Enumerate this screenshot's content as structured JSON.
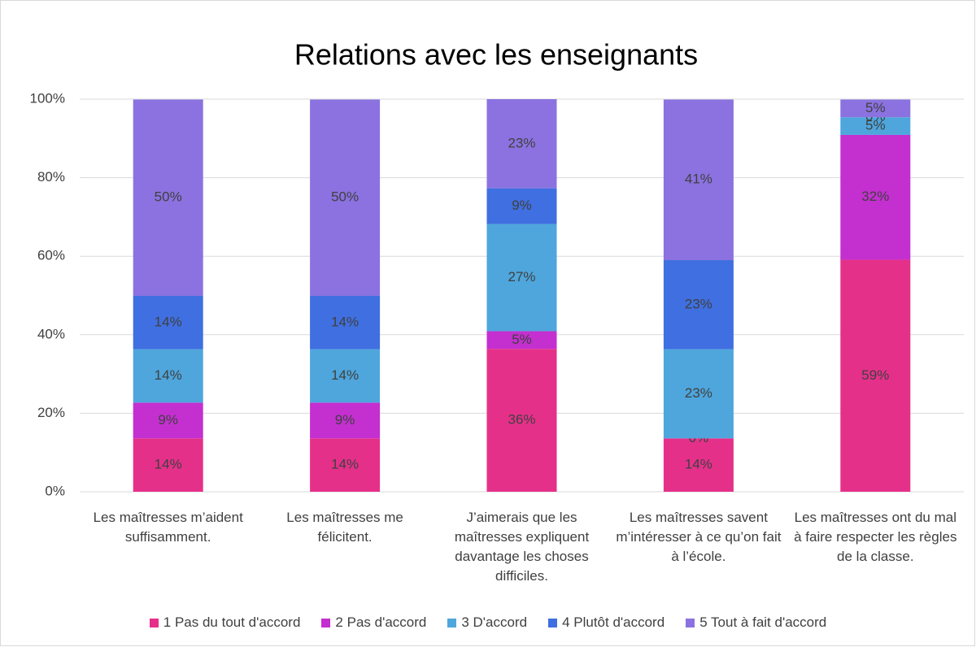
{
  "chart_data": {
    "type": "stacked_bar_percent",
    "title": "Relations avec les enseignants",
    "categories": [
      "Les maîtresses m’aident suffisamment.",
      "Les maîtresses me félicitent.",
      "J’aimerais que les maîtresses expliquent davantage les choses difficiles.",
      "Les maîtresses savent m’intéresser à ce qu’on fait à l’école.",
      "Les maîtresses ont du mal à faire respecter les règles de la classe."
    ],
    "series": [
      {
        "name": "1 Pas du tout d'accord",
        "color": "#e5308a",
        "values": [
          13.6,
          13.6,
          36.4,
          13.6,
          59.1
        ],
        "value_labels": [
          "14%",
          "14%",
          "36%",
          "14%",
          "59%"
        ]
      },
      {
        "name": "2 Pas d'accord",
        "color": "#c42fd0",
        "values": [
          9.1,
          9.1,
          4.5,
          0,
          31.8
        ],
        "value_labels": [
          "9%",
          "9%",
          "5%",
          "0%",
          "32%"
        ]
      },
      {
        "name": "3 D'accord",
        "color": "#4ea6dc",
        "values": [
          13.6,
          13.6,
          27.3,
          22.7,
          4.5
        ],
        "value_labels": [
          "14%",
          "14%",
          "27%",
          "23%",
          "5%"
        ]
      },
      {
        "name": "4 Plutôt d'accord",
        "color": "#3f6fe0",
        "values": [
          13.6,
          13.6,
          9.1,
          22.7,
          0
        ],
        "value_labels": [
          "14%",
          "14%",
          "9%",
          "23%",
          "0%"
        ]
      },
      {
        "name": "5 Tout à fait d'accord",
        "color": "#8b72e0",
        "values": [
          50,
          50,
          22.7,
          40.9,
          4.5
        ],
        "value_labels": [
          "50%",
          "50%",
          "23%",
          "41%",
          "5%"
        ]
      }
    ],
    "ylim": [
      0,
      100
    ],
    "yticks": [
      {
        "value": 0,
        "label": "0%"
      },
      {
        "value": 20,
        "label": "20%"
      },
      {
        "value": 40,
        "label": "40%"
      },
      {
        "value": 60,
        "label": "60%"
      },
      {
        "value": 80,
        "label": "80%"
      },
      {
        "value": 100,
        "label": "100%"
      }
    ],
    "grid": true,
    "legend": "bottom"
  }
}
